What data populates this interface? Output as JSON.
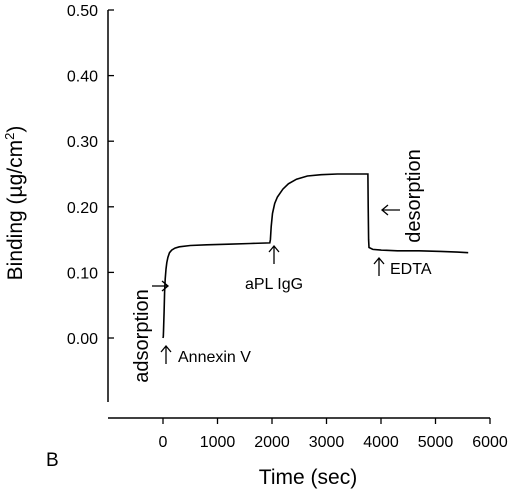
{
  "chart_data": {
    "type": "line",
    "panel_label": "B",
    "xlabel": "Time (sec)",
    "ylabel_main": "Binding (µg/cm",
    "ylabel_sup": "2",
    "ylabel_close": ")",
    "xlim": [
      -1000,
      6000
    ],
    "ylim": [
      -0.1,
      0.5
    ],
    "xticks": [
      0,
      1000,
      2000,
      3000,
      4000,
      5000,
      6000
    ],
    "xtick_labels": [
      "0",
      "1000",
      "2000",
      "3000",
      "4000",
      "5000",
      "6000"
    ],
    "yticks": [
      0.0,
      0.1,
      0.2,
      0.3,
      0.4,
      0.5
    ],
    "ytick_labels": [
      "0.00",
      "0.10",
      "0.20",
      "0.30",
      "0.40",
      "0.50"
    ],
    "grid": false,
    "series": [
      {
        "points": [
          [
            0,
            0.0
          ],
          [
            5,
            0.002
          ],
          [
            10,
            0.01
          ],
          [
            20,
            0.04
          ],
          [
            30,
            0.07
          ],
          [
            40,
            0.09
          ],
          [
            55,
            0.105
          ],
          [
            70,
            0.115
          ],
          [
            90,
            0.123
          ],
          [
            120,
            0.13
          ],
          [
            160,
            0.134
          ],
          [
            220,
            0.137
          ],
          [
            300,
            0.139
          ],
          [
            500,
            0.141
          ],
          [
            800,
            0.142
          ],
          [
            1200,
            0.143
          ],
          [
            1600,
            0.144
          ],
          [
            1960,
            0.145
          ],
          [
            1970,
            0.15
          ],
          [
            1985,
            0.17
          ],
          [
            2010,
            0.19
          ],
          [
            2050,
            0.205
          ],
          [
            2100,
            0.215
          ],
          [
            2200,
            0.227
          ],
          [
            2300,
            0.235
          ],
          [
            2450,
            0.242
          ],
          [
            2650,
            0.247
          ],
          [
            2900,
            0.249
          ],
          [
            3200,
            0.25
          ],
          [
            3500,
            0.25
          ],
          [
            3760,
            0.25
          ],
          [
            3765,
            0.2
          ],
          [
            3772,
            0.15
          ],
          [
            3780,
            0.138
          ],
          [
            3850,
            0.135
          ],
          [
            4000,
            0.134
          ],
          [
            4300,
            0.133
          ],
          [
            4700,
            0.133
          ],
          [
            5100,
            0.132
          ],
          [
            5400,
            0.131
          ],
          [
            5600,
            0.13
          ]
        ]
      }
    ],
    "annotations": [
      {
        "text": "adsorption",
        "x": -250,
        "y": 0.1,
        "rotate": true,
        "big": true
      },
      {
        "text": "Annexin V",
        "x": 0,
        "y": -0.03,
        "arrow": "up"
      },
      {
        "text": "aPL IgG",
        "x": 1960,
        "y": 0.1,
        "arrow": "up"
      },
      {
        "text": "EDTA",
        "x": 3800,
        "y": 0.11,
        "arrow": "up"
      },
      {
        "text": "desorption",
        "x": 4450,
        "y": 0.23,
        "rotate": true,
        "big": true
      }
    ]
  }
}
